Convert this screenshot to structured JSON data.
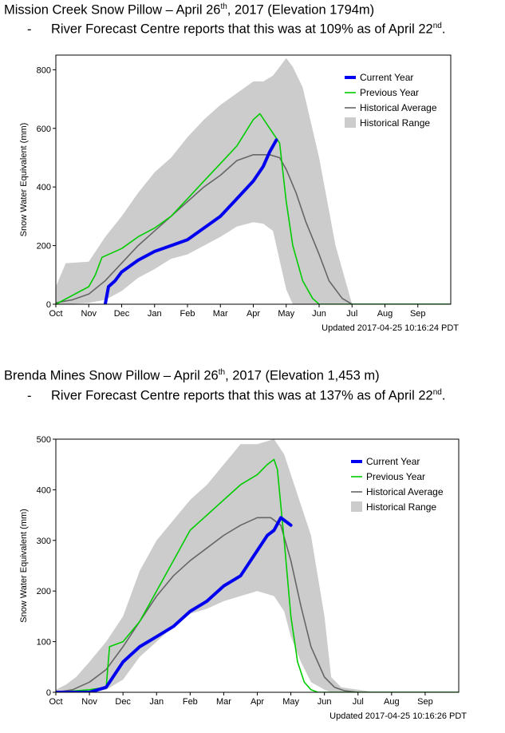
{
  "sections": [
    {
      "heading_main": "Mission Creek Snow Pillow – April 26",
      "heading_sup": "th",
      "heading_rest": ", 2017 (Elevation 1794m)",
      "sub_dash": "-",
      "sub_main": "River Forecast Centre reports that this was at 109% as of April 22",
      "sub_sup": "nd",
      "sub_rest": "."
    },
    {
      "heading_main": "Brenda Mines Snow Pillow – April 26",
      "heading_sup": "th",
      "heading_rest": ", 2017 (Elevation 1,453 m)",
      "sub_dash": "-",
      "sub_main": "River Forecast Centre reports that this was at 137% as of April 22",
      "sub_sup": "nd",
      "sub_rest": "."
    }
  ],
  "colors": {
    "current": "#0000ee",
    "previous": "#00cc00",
    "average": "#666666",
    "range": "#cccccc"
  },
  "chart_data": [
    {
      "type": "line",
      "ylabel": "Snow Water Equivalent (mm)",
      "xlabel": "",
      "ylim": [
        0,
        850
      ],
      "yticks": [
        0,
        200,
        400,
        600,
        800
      ],
      "xticks": [
        "Oct",
        "Nov",
        "Dec",
        "Jan",
        "Feb",
        "Mar",
        "Apr",
        "May",
        "Jun",
        "Jul",
        "Aug",
        "Sep"
      ],
      "footer": "Updated 2017-04-25 10:16:24 PDT",
      "legend_position": "top-right",
      "legend": [
        "Current Year",
        "Previous Year",
        "Historical Average",
        "Historical Range"
      ],
      "series": [
        {
          "name": "Historical Range",
          "kind": "band",
          "x": [
            0,
            0.3,
            1,
            1.5,
            2,
            2.5,
            3,
            3.5,
            4,
            4.5,
            5,
            5.5,
            6,
            6.3,
            6.6,
            7,
            7.2,
            7.5,
            8,
            8.5,
            9,
            9.5,
            10,
            11,
            12
          ],
          "upper": [
            60,
            140,
            145,
            230,
            300,
            380,
            450,
            500,
            570,
            630,
            680,
            720,
            760,
            760,
            780,
            840,
            810,
            740,
            500,
            200,
            0,
            0,
            0,
            0,
            0
          ],
          "lower": [
            0,
            0,
            5,
            15,
            45,
            90,
            120,
            155,
            170,
            200,
            230,
            265,
            280,
            275,
            250,
            50,
            0,
            0,
            0,
            0,
            0,
            0,
            0,
            0,
            0
          ]
        },
        {
          "name": "Historical Average",
          "kind": "line",
          "x": [
            0,
            0.5,
            1,
            1.5,
            2,
            2.5,
            3,
            3.5,
            4,
            4.5,
            5,
            5.5,
            6,
            6.5,
            6.8,
            7,
            7.3,
            7.6,
            8,
            8.3,
            8.7,
            9,
            9.2,
            10,
            11,
            12
          ],
          "y": [
            5,
            15,
            35,
            80,
            140,
            200,
            250,
            300,
            350,
            400,
            440,
            490,
            510,
            510,
            500,
            460,
            380,
            280,
            170,
            80,
            20,
            0,
            0,
            0,
            0,
            0
          ]
        },
        {
          "name": "Previous Year",
          "kind": "line",
          "x": [
            0,
            1,
            1.2,
            1.4,
            2,
            2.5,
            3,
            3.5,
            4,
            4.5,
            5,
            5.5,
            6,
            6.2,
            6.5,
            6.8,
            7,
            7.2,
            7.5,
            7.8,
            8,
            8.2,
            9,
            10,
            11,
            12
          ],
          "y": [
            0,
            60,
            100,
            160,
            190,
            230,
            260,
            300,
            360,
            420,
            480,
            540,
            630,
            650,
            600,
            550,
            350,
            200,
            80,
            20,
            0,
            0,
            0,
            0,
            0,
            0
          ]
        },
        {
          "name": "Current Year",
          "kind": "line",
          "x": [
            1.5,
            1.6,
            1.8,
            2,
            2.5,
            3,
            3.5,
            4,
            4.5,
            5,
            5.5,
            6,
            6.3,
            6.5,
            6.7
          ],
          "y": [
            0,
            60,
            80,
            110,
            150,
            180,
            200,
            220,
            260,
            300,
            360,
            420,
            470,
            520,
            560
          ]
        }
      ]
    },
    {
      "type": "line",
      "ylabel": "Snow Water Equivalent (mm)",
      "xlabel": "",
      "ylim": [
        0,
        500
      ],
      "yticks": [
        0,
        100,
        200,
        300,
        400,
        500
      ],
      "xticks": [
        "Oct",
        "Nov",
        "Dec",
        "Jan",
        "Feb",
        "Mar",
        "Apr",
        "May",
        "Jun",
        "Jul",
        "Aug",
        "Sep"
      ],
      "footer": "Updated 2017-04-25 10:16:26 PDT",
      "legend_position": "top-right",
      "legend": [
        "Current Year",
        "Previous Year",
        "Historical Average",
        "Historical Range"
      ],
      "series": [
        {
          "name": "Historical Range",
          "kind": "band",
          "x": [
            0,
            0.3,
            0.6,
            1,
            1.5,
            2,
            2.5,
            3,
            3.5,
            4,
            4.5,
            5,
            5.5,
            6,
            6.5,
            6.8,
            7,
            7.3,
            7.6,
            8,
            8.2,
            8.5,
            9,
            9.5,
            10,
            11,
            12
          ],
          "upper": [
            5,
            15,
            30,
            60,
            100,
            150,
            240,
            300,
            340,
            380,
            410,
            450,
            490,
            490,
            500,
            470,
            430,
            370,
            310,
            150,
            30,
            10,
            5,
            0,
            0,
            0,
            0
          ],
          "lower": [
            0,
            0,
            0,
            0,
            5,
            25,
            70,
            100,
            130,
            155,
            165,
            180,
            190,
            200,
            190,
            160,
            110,
            60,
            20,
            5,
            0,
            0,
            0,
            0,
            0,
            0,
            0
          ]
        },
        {
          "name": "Historical Average",
          "kind": "line",
          "x": [
            0,
            0.5,
            1,
            1.5,
            2,
            2.5,
            3,
            3.5,
            4,
            4.5,
            5,
            5.5,
            6,
            6.4,
            6.7,
            7,
            7.3,
            7.6,
            8,
            8.3,
            8.6,
            9,
            10,
            11,
            12
          ],
          "y": [
            0,
            5,
            20,
            45,
            90,
            140,
            190,
            230,
            260,
            285,
            310,
            330,
            345,
            345,
            330,
            260,
            170,
            90,
            30,
            10,
            3,
            0,
            0,
            0,
            0
          ]
        },
        {
          "name": "Previous Year",
          "kind": "line",
          "x": [
            0,
            1,
            1.5,
            1.6,
            2,
            2.5,
            3,
            3.5,
            4,
            4.5,
            5,
            5.5,
            6,
            6.3,
            6.5,
            6.6,
            6.8,
            7,
            7.2,
            7.4,
            7.6,
            7.8,
            8,
            9,
            10,
            11,
            12
          ],
          "y": [
            0,
            5,
            10,
            90,
            100,
            140,
            200,
            260,
            320,
            350,
            380,
            410,
            430,
            450,
            460,
            440,
            300,
            150,
            60,
            20,
            5,
            0,
            0,
            0,
            0,
            0,
            0
          ]
        },
        {
          "name": "Current Year",
          "kind": "line",
          "x": [
            0,
            0.5,
            1,
            1.5,
            1.8,
            2,
            2.5,
            3,
            3.5,
            4,
            4.5,
            5,
            5.5,
            6,
            6.3,
            6.5,
            6.7,
            6.9,
            7
          ],
          "y": [
            0,
            0,
            0,
            10,
            40,
            60,
            90,
            110,
            130,
            160,
            180,
            210,
            230,
            280,
            310,
            320,
            345,
            335,
            330
          ]
        }
      ]
    }
  ]
}
